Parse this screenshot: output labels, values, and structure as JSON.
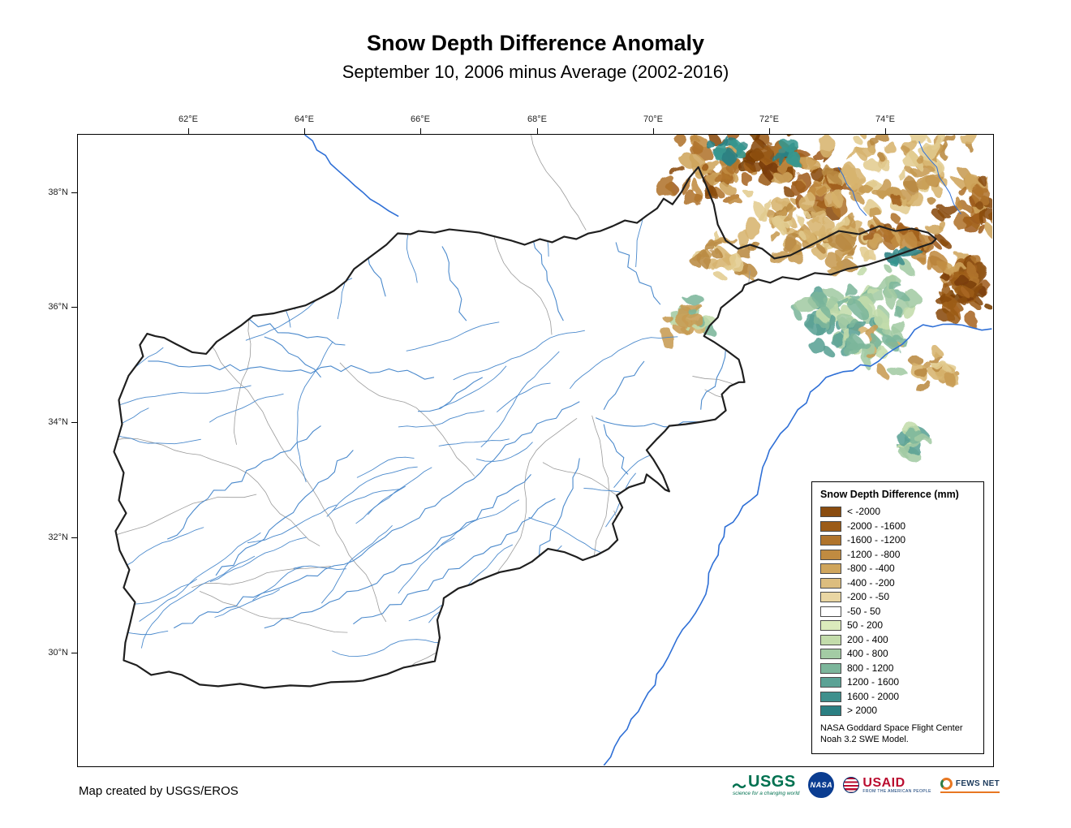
{
  "title": "Snow Depth Difference Anomaly",
  "subtitle": "September 10, 2006 minus Average (2002-2016)",
  "axes": {
    "lon": [
      "62°E",
      "64°E",
      "66°E",
      "68°E",
      "70°E",
      "72°E",
      "74°E"
    ],
    "lat": [
      "38°N",
      "36°N",
      "34°N",
      "32°N",
      "30°N"
    ]
  },
  "legend": {
    "title": "Snow Depth Difference (mm)",
    "entries": [
      {
        "label": "< -2000",
        "color": "#8a4c0f"
      },
      {
        "label": "-2000 - -1600",
        "color": "#9c5c18"
      },
      {
        "label": "-1600 - -1200",
        "color": "#b0742c"
      },
      {
        "label": "-1200 - -800",
        "color": "#c08b41"
      },
      {
        "label": "-800 - -400",
        "color": "#cfa55c"
      },
      {
        "label": "-400 - -200",
        "color": "#dcbd7e"
      },
      {
        "label": "-200 - -50",
        "color": "#e9d6a3"
      },
      {
        "label": "-50 - 50",
        "color": "#ffffff"
      },
      {
        "label": "50 - 200",
        "color": "#dcebbc"
      },
      {
        "label": "200 - 400",
        "color": "#c3dcab"
      },
      {
        "label": "400 - 800",
        "color": "#a3cba4"
      },
      {
        "label": "800 - 1200",
        "color": "#7cb69b"
      },
      {
        "label": "1200 - 1600",
        "color": "#5ba295"
      },
      {
        "label": "1600 - 2000",
        "color": "#3f908d"
      },
      {
        "label": "> 2000",
        "color": "#2b7f82"
      }
    ],
    "note_line1": "NASA Goddard Space Flight Center",
    "note_line2": "Noah 3.2 SWE Model."
  },
  "credit": "Map created by USGS/EROS",
  "logos": {
    "usgs": {
      "name": "USGS",
      "tagline": "science for a changing world"
    },
    "nasa": {
      "name": "NASA"
    },
    "usaid": {
      "name": "USAID",
      "tagline": "FROM THE AMERICAN PEOPLE"
    },
    "fews": {
      "name": "FEWS NET"
    }
  },
  "map_colors": {
    "country_border": "#1f1f1f",
    "district_boundary": "#9a9a9a",
    "river": "#4a89cc",
    "external_river": "#2e6fd6"
  }
}
